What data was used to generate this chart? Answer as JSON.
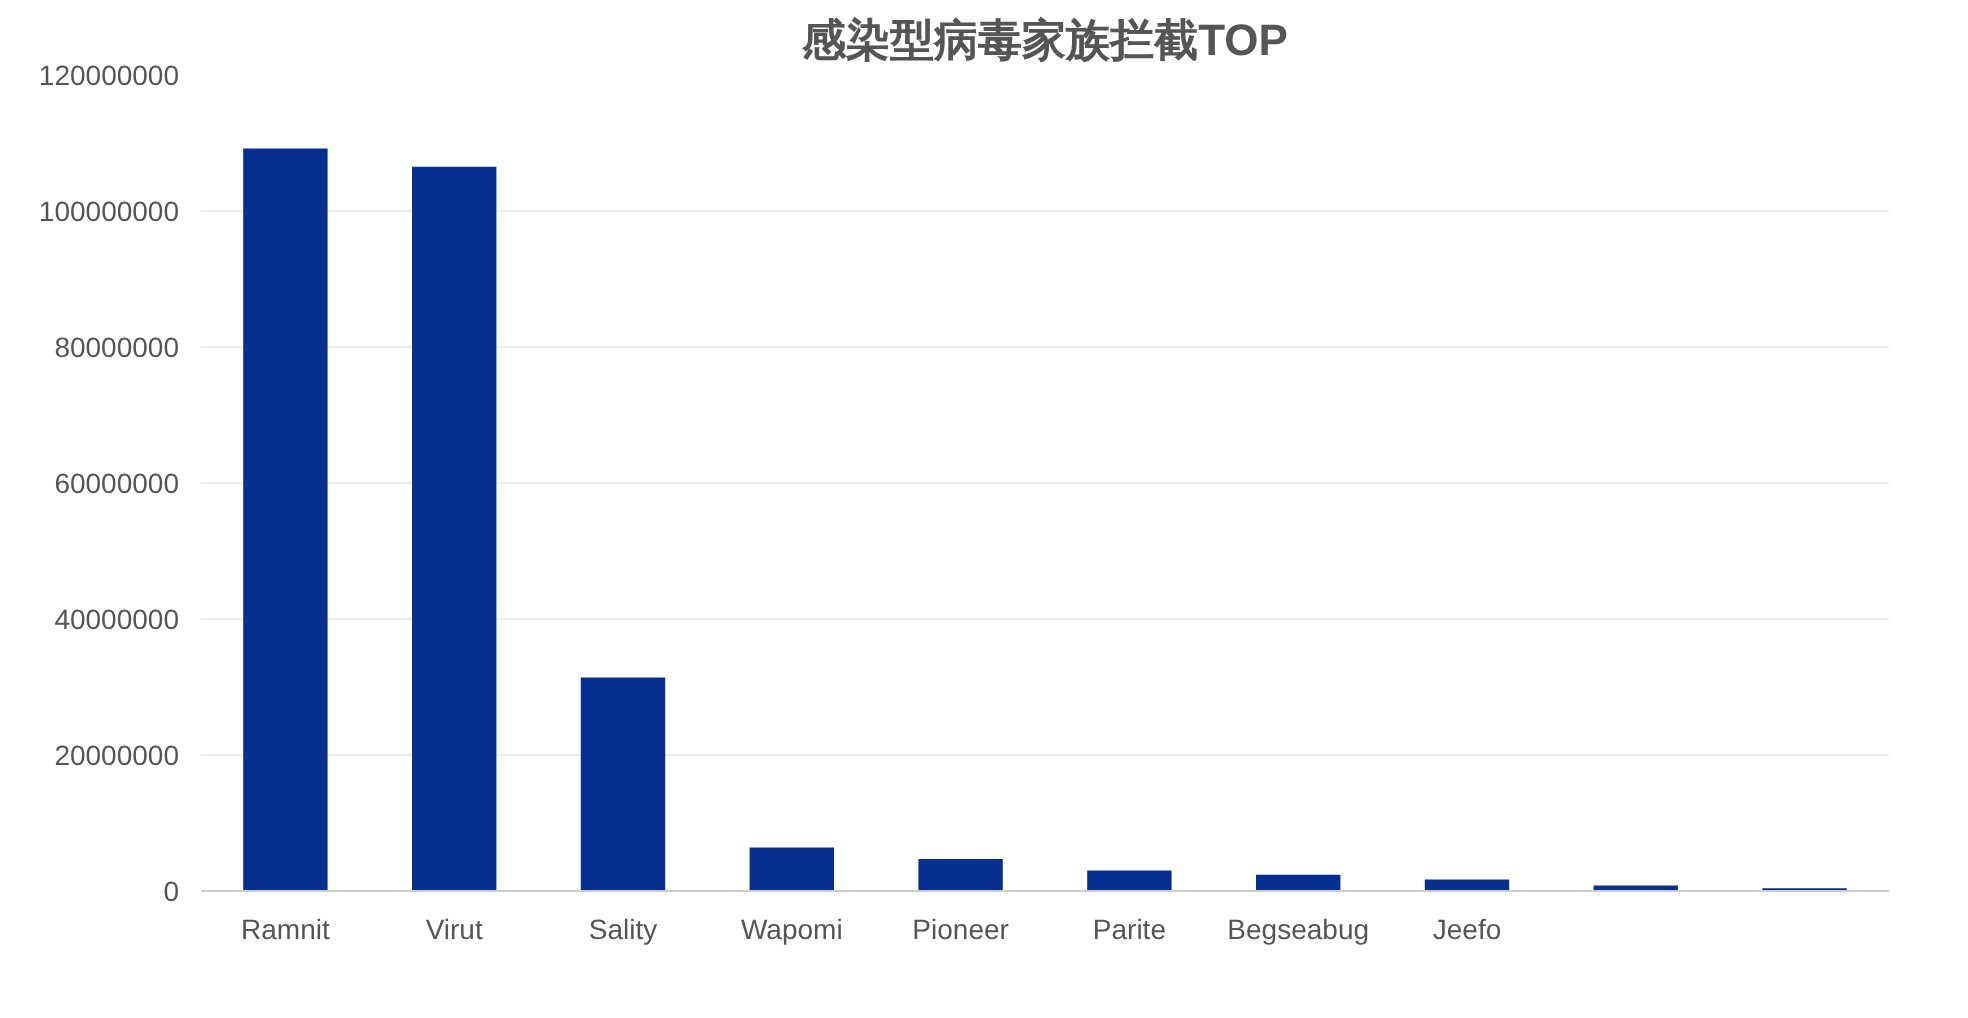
{
  "chart_data": {
    "type": "bar",
    "title": "感染型病毒家族拦截TOP",
    "categories": [
      "Ramnit",
      "Virut",
      "Sality",
      "Wapomi",
      "Pioneer",
      "Parite",
      "Begseabug",
      "Jeefo",
      null,
      null
    ],
    "values": [
      109200000,
      106500000,
      31400000,
      6400000,
      4700000,
      3000000,
      2400000,
      1700000,
      800000,
      400000
    ],
    "color": "#06308f",
    "ylim": [
      0,
      120000000
    ],
    "yticks": [
      0,
      20000000,
      40000000,
      60000000,
      80000000,
      100000000,
      120000000
    ],
    "grid": "y"
  }
}
